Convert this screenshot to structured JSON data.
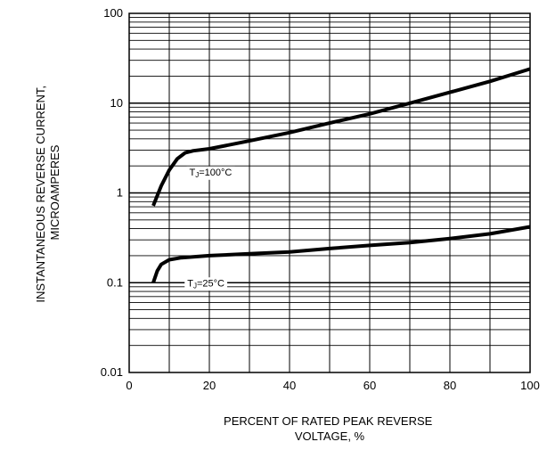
{
  "chart_data": {
    "type": "line",
    "title": "",
    "xlabel": [
      "PERCENT OF RATED PEAK REVERSE",
      "VOLTAGE, %"
    ],
    "ylabel": [
      "INSTANTANEOUS REVERSE CURRENT,",
      "MICROAMPERES"
    ],
    "xlim": [
      0,
      100
    ],
    "ylim": [
      0.01,
      100
    ],
    "yscale": "log",
    "grid": true,
    "x_ticks": [
      "0",
      "20",
      "40",
      "60",
      "80",
      "100"
    ],
    "y_ticks": [
      "0.01",
      "0.1",
      "1",
      "10",
      "100"
    ],
    "series": [
      {
        "label_tj": "T",
        "label_sub": "J",
        "label_rest": "=100°C",
        "points": [
          [
            6,
            0.72
          ],
          [
            8,
            1.2
          ],
          [
            10,
            1.8
          ],
          [
            12,
            2.4
          ],
          [
            14,
            2.8
          ],
          [
            16,
            2.95
          ],
          [
            20,
            3.1
          ],
          [
            30,
            3.8
          ],
          [
            40,
            4.7
          ],
          [
            50,
            6.0
          ],
          [
            60,
            7.6
          ],
          [
            70,
            10.0
          ],
          [
            80,
            13.2
          ],
          [
            90,
            17.5
          ],
          [
            100,
            24.0
          ]
        ]
      },
      {
        "label_tj": "T",
        "label_sub": "J",
        "label_rest": "=25°C",
        "points": [
          [
            6,
            0.1
          ],
          [
            7,
            0.135
          ],
          [
            8,
            0.16
          ],
          [
            10,
            0.18
          ],
          [
            13,
            0.19
          ],
          [
            20,
            0.2
          ],
          [
            30,
            0.21
          ],
          [
            40,
            0.22
          ],
          [
            50,
            0.24
          ],
          [
            60,
            0.26
          ],
          [
            70,
            0.28
          ],
          [
            80,
            0.31
          ],
          [
            90,
            0.35
          ],
          [
            100,
            0.42
          ]
        ]
      }
    ]
  }
}
